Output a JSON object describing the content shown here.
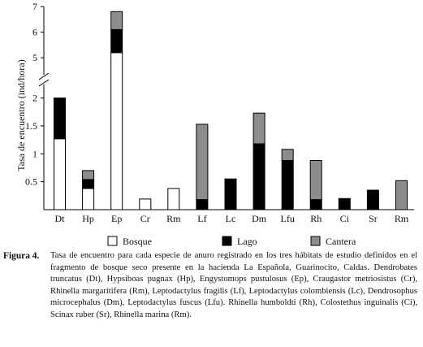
{
  "chart_data": {
    "type": "bar",
    "stacked": true,
    "ylabel": "Tasa de encuentro (ind/hora)",
    "xlabel": "",
    "categories": [
      "Dt",
      "Hp",
      "Ep",
      "Cr",
      "Rm",
      "Lf",
      "Lc",
      "Dm",
      "Lfu",
      "Rh",
      "Ci",
      "Sr",
      "Rm"
    ],
    "series": [
      {
        "name": "Bosque",
        "color": "#ffffff",
        "values": [
          1.27,
          0.38,
          5.2,
          0.19,
          0.38,
          0,
          0,
          0,
          0,
          0,
          0,
          0,
          0
        ]
      },
      {
        "name": "Lago",
        "color": "#000000",
        "values": [
          0.73,
          0.16,
          0.9,
          0,
          0,
          0.18,
          0.55,
          1.18,
          0.88,
          0.18,
          0.2,
          0.35,
          0
        ]
      },
      {
        "name": "Cantera",
        "color": "#8c8c8c",
        "values": [
          0,
          0.16,
          0.7,
          0,
          0,
          1.35,
          0,
          0.55,
          0.2,
          0.7,
          0,
          0,
          0.52
        ]
      }
    ],
    "yaxis": {
      "lower_ticks": [
        "0.5",
        "1",
        "1.5",
        "2"
      ],
      "upper_ticks": [
        "5",
        "6",
        "7"
      ],
      "break_between": [
        2.3,
        4.4
      ],
      "lower_range": [
        0,
        2.3
      ],
      "upper_range": [
        4.4,
        7
      ]
    },
    "grid": false,
    "legend": {
      "position": "bottom",
      "entries": [
        "Bosque",
        "Lago",
        "Cantera"
      ]
    }
  },
  "caption": {
    "label": "Figura 4.",
    "text": "Tasa de encuentro para cada especie de anuro registrado en los tres hábitats de estudio definidos en el fragmento de bosque seco presente en la hacienda La Española, Guarinocito, Caldas. Dendrobates truncatus (Dt), Hypsiboas pugnax (Hp), Engystomops pustulosus (Ep), Craugastor metriosistus (Cr), Rhinella margaritifera (Rm), Leptodactylus fragilis (Lf), Leptodactylus colombiensis (Lc), Dendrosophus microcephalus (Dm), Leptodactylus fuscus (Lfu). Rhinella humboldti (Rh), Colostethus inguinalis (Ci), Scinax ruber (Sr), Rhinella marina (Rm)."
  }
}
